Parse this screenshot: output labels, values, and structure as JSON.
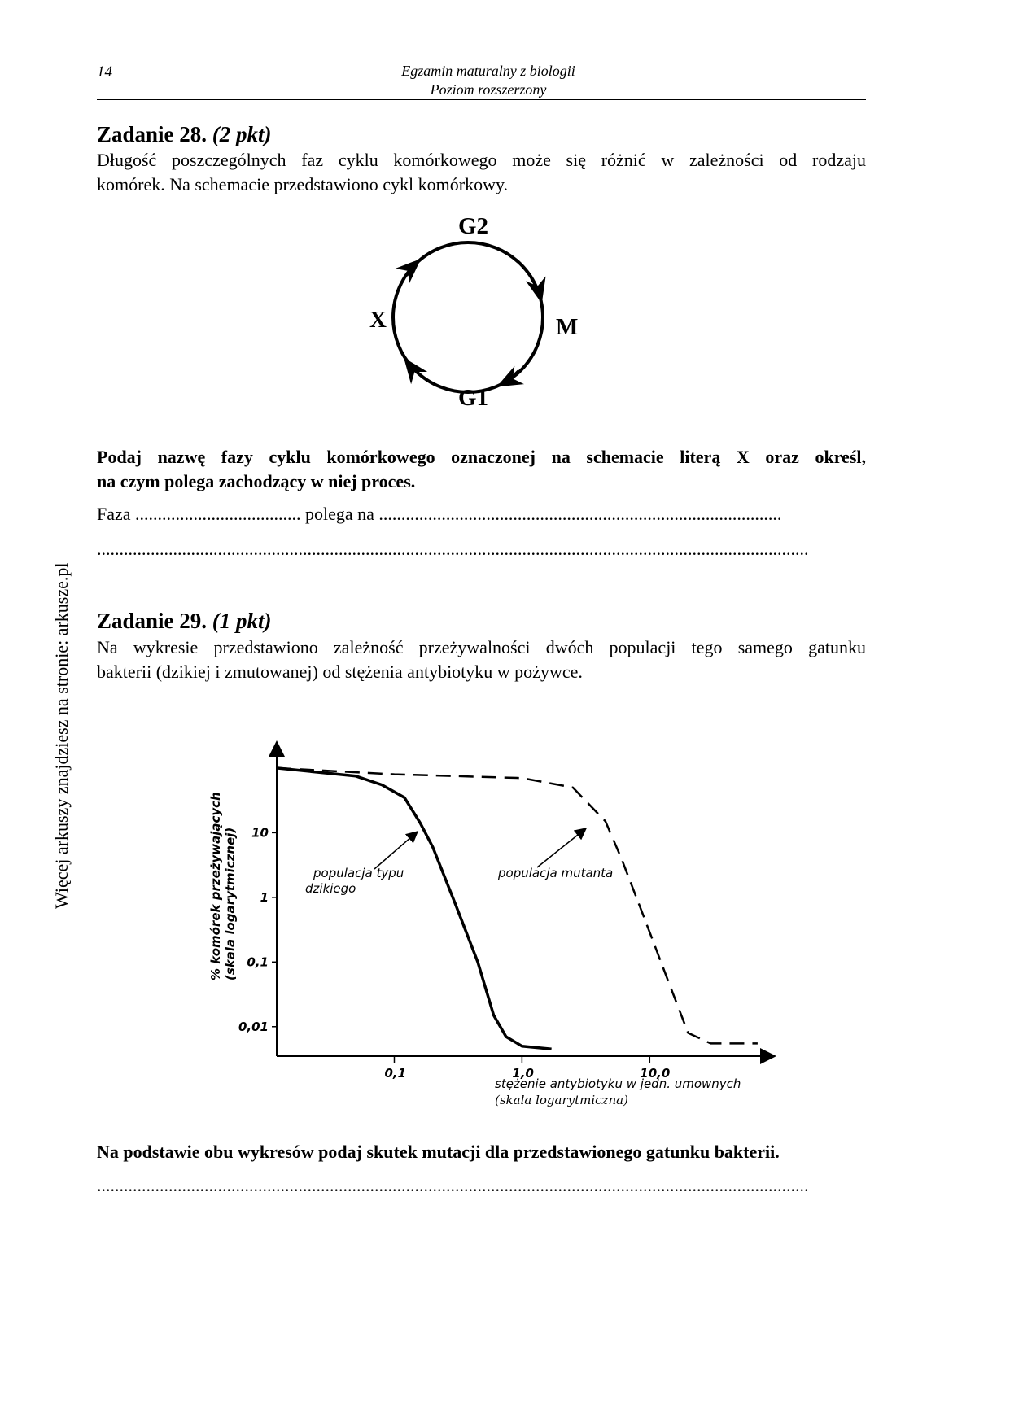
{
  "header": {
    "page_number": "14",
    "title_line1": "Egzamin maturalny z biologii",
    "title_line2": "Poziom rozszerzony"
  },
  "side_text": "Więcej arkuszy znajdziesz na stronie: arkusze.pl",
  "task28": {
    "title": "Zadanie 28.",
    "points": "(2 pkt)",
    "intro_line1": "Długość poszczególnych faz cyklu komórkowego może się różnić w zależności od rodzaju",
    "intro_line2": "komórek. Na schemacie  przedstawiono cykl komórkowy.",
    "diagram": {
      "labels": {
        "top": "G2",
        "right": "M",
        "bottom": "G1",
        "left": "X"
      }
    },
    "instruction_line1": "Podaj nazwę fazy cyklu komórkowego oznaczonej na schemacie literą X oraz określ,",
    "instruction_line2": "na czym polega zachodzący w niej proces.",
    "answer_line1": "Faza ..................................... polega na ..........................................................................................",
    "answer_line2": "..............................................................................................................................................................."
  },
  "task29": {
    "title": "Zadanie 29.",
    "points": "(1 pkt)",
    "intro_line1": "Na wykresie przedstawiono zależność przeżywalności dwóch populacji tego samego gatunku",
    "intro_line2": "bakterii (dzikiej i zmutowanej) od stężenia antybiotyku w pożywce.",
    "instruction": "Na podstawie obu wykresów podaj skutek mutacji dla przedstawionego gatunku bakterii.",
    "answer_line": "..............................................................................................................................................................."
  },
  "chart_data": {
    "type": "line",
    "title": "",
    "xlabel_line1": "stężenie antybiotyku w jedn. umownych",
    "xlabel_line2": "(skala logarytmiczna)",
    "ylabel_line1": "% komórek przeżywających",
    "ylabel_line2": "(skala logarytmicznej)",
    "x_scale": "log",
    "y_scale": "log",
    "x_ticks": [
      {
        "value": 0.1,
        "label": "0,1"
      },
      {
        "value": 1.0,
        "label": "1,0"
      },
      {
        "value": 10.0,
        "label": "10,0"
      }
    ],
    "y_ticks": [
      {
        "value": 10,
        "label": "10"
      },
      {
        "value": 1,
        "label": "1"
      },
      {
        "value": 0.1,
        "label": "0,1"
      },
      {
        "value": 0.01,
        "label": "0,01"
      }
    ],
    "xlim": [
      0.012,
      80
    ],
    "ylim": [
      0.0035,
      200
    ],
    "series": [
      {
        "name": "populacja typu dzikiego",
        "style": "solid",
        "points": [
          [
            0.012,
            100
          ],
          [
            0.05,
            75
          ],
          [
            0.08,
            55
          ],
          [
            0.12,
            35
          ],
          [
            0.16,
            14
          ],
          [
            0.2,
            6
          ],
          [
            0.3,
            0.8
          ],
          [
            0.45,
            0.1
          ],
          [
            0.6,
            0.015
          ],
          [
            0.75,
            0.007
          ],
          [
            1.0,
            0.005
          ],
          [
            1.7,
            0.0045
          ]
        ]
      },
      {
        "name": "populacja mutanta",
        "style": "dashed",
        "points": [
          [
            0.012,
            100
          ],
          [
            0.1,
            80
          ],
          [
            1.0,
            70
          ],
          [
            2.5,
            50
          ],
          [
            4.5,
            15
          ],
          [
            6.0,
            4
          ],
          [
            9.0,
            0.5
          ],
          [
            14,
            0.05
          ],
          [
            20,
            0.008
          ],
          [
            30,
            0.0055
          ],
          [
            70,
            0.0055
          ]
        ]
      }
    ],
    "annotations": [
      {
        "line1": "populacja typu",
        "line2": "dzikiego",
        "series": "populacja typu dzikiego"
      },
      {
        "line1": "populacja mutanta",
        "line2": "",
        "series": "populacja mutanta"
      }
    ]
  }
}
